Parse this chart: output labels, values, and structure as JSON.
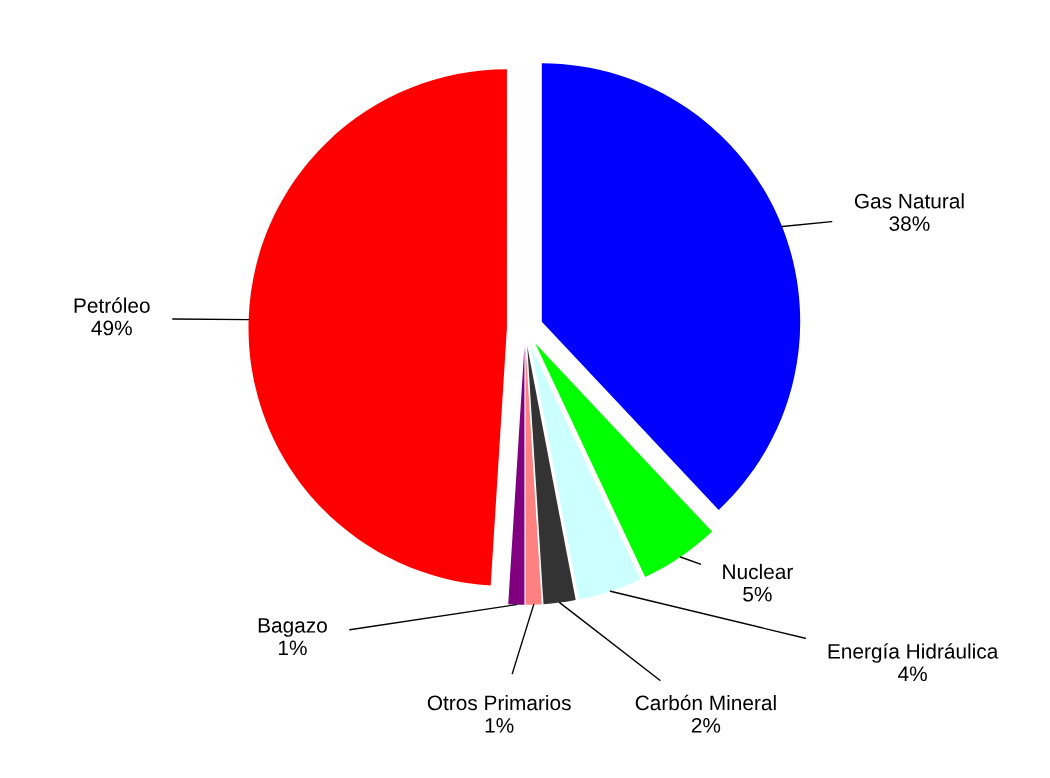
{
  "chart_data": {
    "type": "pie",
    "categories": [
      "Gas Natural",
      "Nuclear",
      "Energía Hidráulica",
      "Carbón Mineral",
      "Otros Primarios",
      "Bagazo",
      "Petróleo"
    ],
    "values": [
      38,
      5,
      4,
      2,
      1,
      1,
      49
    ],
    "value_labels": [
      "38%",
      "5%",
      "4%",
      "2%",
      "1%",
      "1%",
      "49%"
    ],
    "colors": [
      "#0000ff",
      "#00ff00",
      "#ccffff",
      "#333333",
      "#ff8080",
      "#800080",
      "#ff0000"
    ]
  }
}
